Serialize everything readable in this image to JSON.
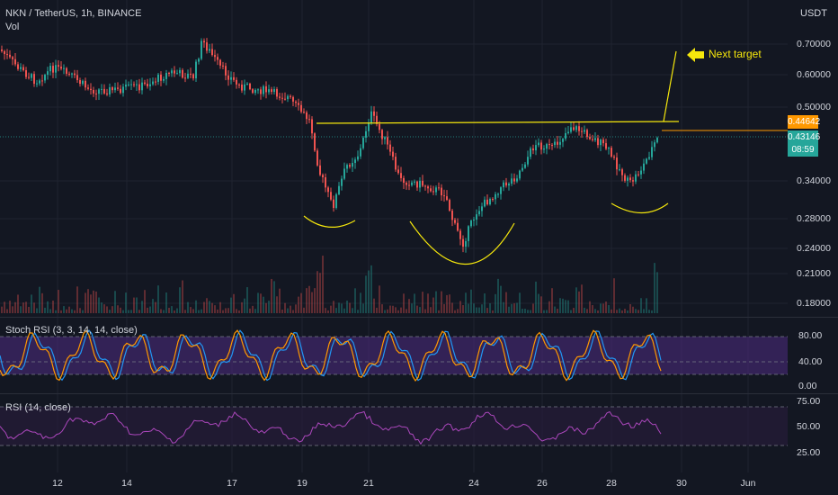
{
  "header": {
    "symbol_title": "NKN / TetherUS, 1h, BINANCE",
    "vol_label": "Vol",
    "currency": "USDT"
  },
  "price_axis": {
    "ticks": [
      "0.70000",
      "0.60000",
      "0.50000",
      "0.34000",
      "0.28000",
      "0.24000",
      "0.21000",
      "0.18000"
    ],
    "current_price": "0.43146",
    "countdown": "08:59",
    "target_price": "0.44642"
  },
  "annotation": {
    "next_target": "Next target"
  },
  "stoch_rsi": {
    "label": "Stoch RSI (3, 3, 14, 14, close)",
    "ticks": [
      "80.00",
      "40.00",
      "0.00"
    ]
  },
  "rsi": {
    "label": "RSI (14, close)",
    "ticks": [
      "75.00",
      "50.00",
      "25.00"
    ]
  },
  "time_axis": {
    "labels": [
      "12",
      "14",
      "17",
      "19",
      "21",
      "24",
      "26",
      "28",
      "30",
      "Jun"
    ]
  },
  "colors": {
    "background": "#131722",
    "up": "#26a69a",
    "down": "#ef5350",
    "annotation": "#f5e70c",
    "target_tag": "#ff9800",
    "price_tag": "#26a69a",
    "stoch_band": "#4a2a7a",
    "rsi_line": "#ab47bc"
  }
}
